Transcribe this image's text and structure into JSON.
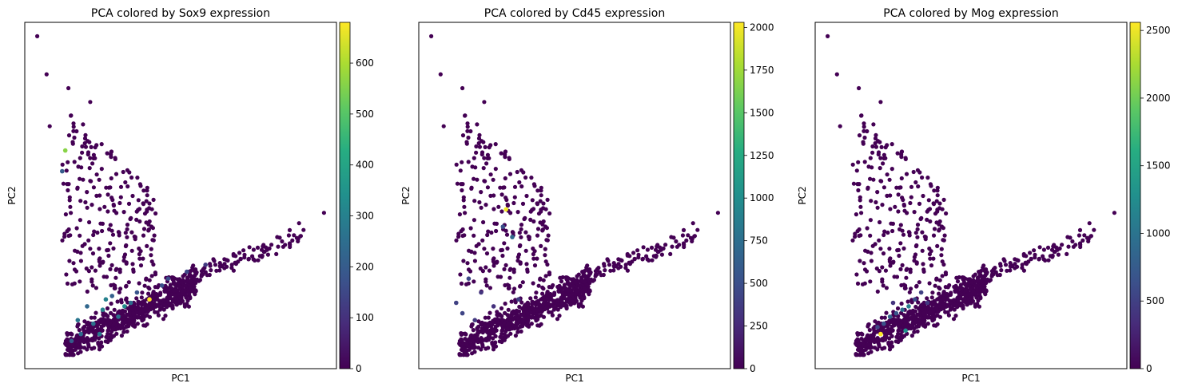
{
  "chart_data": [
    {
      "type": "scatter",
      "title": "PCA colored by Sox9 expression",
      "xlabel": "PC1",
      "ylabel": "PC2",
      "colormap": "viridis",
      "colorbar": {
        "min": 0,
        "max": 680,
        "ticks": [
          0,
          100,
          200,
          300,
          400,
          500,
          600
        ]
      },
      "highlight_points": [
        {
          "x": 0.13,
          "y": 0.63,
          "value": 560
        },
        {
          "x": 0.4,
          "y": 0.2,
          "value": 680
        },
        {
          "x": 0.32,
          "y": 0.18,
          "value": 330
        },
        {
          "x": 0.25,
          "y": 0.17,
          "value": 300
        },
        {
          "x": 0.22,
          "y": 0.13,
          "value": 260
        },
        {
          "x": 0.18,
          "y": 0.1,
          "value": 240
        },
        {
          "x": 0.28,
          "y": 0.21,
          "value": 210
        },
        {
          "x": 0.36,
          "y": 0.22,
          "value": 180
        },
        {
          "x": 0.46,
          "y": 0.26,
          "value": 160
        },
        {
          "x": 0.52,
          "y": 0.28,
          "value": 150
        },
        {
          "x": 0.2,
          "y": 0.18,
          "value": 230
        },
        {
          "x": 0.15,
          "y": 0.08,
          "value": 200
        },
        {
          "x": 0.24,
          "y": 0.1,
          "value": 280
        },
        {
          "x": 0.3,
          "y": 0.15,
          "value": 260
        },
        {
          "x": 0.34,
          "y": 0.19,
          "value": 250
        },
        {
          "x": 0.44,
          "y": 0.24,
          "value": 170
        },
        {
          "x": 0.58,
          "y": 0.3,
          "value": 120
        },
        {
          "x": 0.12,
          "y": 0.57,
          "value": 200
        },
        {
          "x": 0.17,
          "y": 0.14,
          "value": 270
        },
        {
          "x": 0.26,
          "y": 0.2,
          "value": 300
        }
      ]
    },
    {
      "type": "scatter",
      "title": "PCA colored by Cd45 expression",
      "xlabel": "PC1",
      "ylabel": "PC2",
      "colormap": "viridis",
      "colorbar": {
        "min": 0,
        "max": 2030,
        "ticks": [
          0,
          250,
          500,
          750,
          1000,
          1250,
          1500,
          1750,
          2000
        ]
      },
      "highlight_points": [
        {
          "x": 0.28,
          "y": 0.46,
          "value": 2000
        },
        {
          "x": 0.3,
          "y": 0.38,
          "value": 700
        },
        {
          "x": 0.27,
          "y": 0.41,
          "value": 500
        },
        {
          "x": 0.16,
          "y": 0.26,
          "value": 450
        },
        {
          "x": 0.12,
          "y": 0.19,
          "value": 400
        },
        {
          "x": 0.18,
          "y": 0.14,
          "value": 350
        },
        {
          "x": 0.24,
          "y": 0.18,
          "value": 300
        },
        {
          "x": 0.32,
          "y": 0.2,
          "value": 380
        },
        {
          "x": 0.2,
          "y": 0.22,
          "value": 320
        },
        {
          "x": 0.14,
          "y": 0.16,
          "value": 420
        }
      ]
    },
    {
      "type": "scatter",
      "title": "PCA colored by Mog expression",
      "xlabel": "PC1",
      "ylabel": "PC2",
      "colormap": "viridis",
      "colorbar": {
        "min": 0,
        "max": 2560,
        "ticks": [
          0,
          500,
          1000,
          1500,
          2000,
          2500
        ]
      },
      "highlight_points": [
        {
          "x": 0.21,
          "y": 0.1,
          "value": 2560
        },
        {
          "x": 0.29,
          "y": 0.11,
          "value": 1300
        },
        {
          "x": 0.28,
          "y": 0.17,
          "value": 900
        },
        {
          "x": 0.3,
          "y": 0.18,
          "value": 1100
        },
        {
          "x": 0.24,
          "y": 0.15,
          "value": 800
        },
        {
          "x": 0.26,
          "y": 0.16,
          "value": 700
        },
        {
          "x": 0.22,
          "y": 0.13,
          "value": 650
        },
        {
          "x": 0.34,
          "y": 0.22,
          "value": 500
        },
        {
          "x": 0.32,
          "y": 0.2,
          "value": 600
        },
        {
          "x": 0.36,
          "y": 0.19,
          "value": 450
        },
        {
          "x": 0.2,
          "y": 0.12,
          "value": 550
        },
        {
          "x": 0.25,
          "y": 0.19,
          "value": 400
        }
      ]
    }
  ]
}
